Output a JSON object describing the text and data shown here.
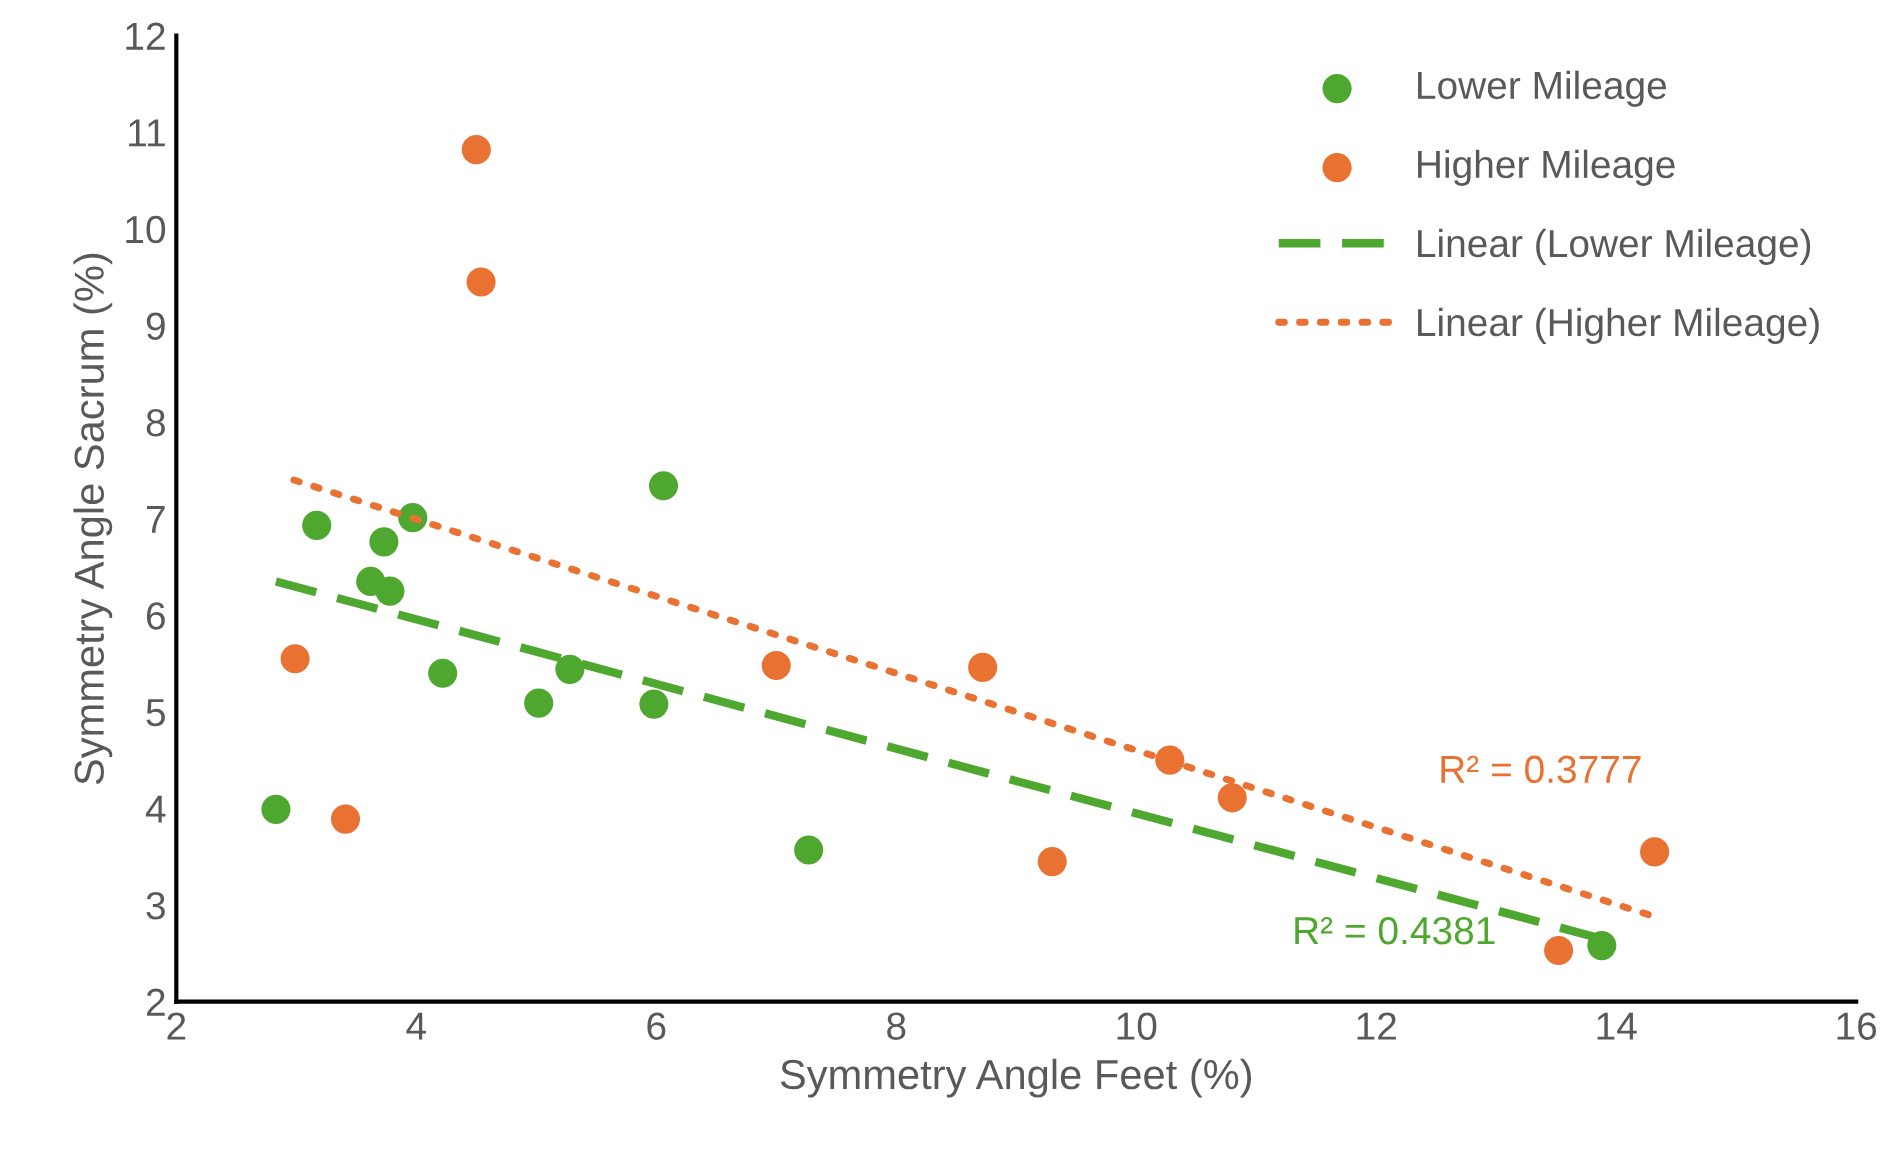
{
  "chart_data": {
    "type": "scatter",
    "xlabel": "Symmetry Angle Feet (%)",
    "ylabel": "Symmetry Angle Sacrum (%)",
    "xlim": [
      2,
      16
    ],
    "xticks": [
      2,
      4,
      6,
      8,
      10,
      12,
      14,
      16
    ],
    "ylim": [
      2,
      12
    ],
    "yticks": [
      2,
      3,
      4,
      5,
      6,
      7,
      8,
      9,
      10,
      11,
      12
    ],
    "grid": false,
    "legend": "top right",
    "marker": "circle",
    "series": [
      {
        "name": "Lower Mileage",
        "color": "#4ea72e",
        "x": [
          2.83,
          3.17,
          3.97,
          3.73,
          3.62,
          3.78,
          4.22,
          5.28,
          5.02,
          5.98,
          6.06,
          7.27,
          13.88
        ],
        "values": [
          3.99,
          6.93,
          7.01,
          6.76,
          6.35,
          6.25,
          5.4,
          5.44,
          5.09,
          5.08,
          7.34,
          3.57,
          2.58
        ]
      },
      {
        "name": "Higher Mileage",
        "color": "#e97132",
        "x": [
          4.5,
          4.54,
          2.99,
          3.41,
          7.0,
          8.72,
          10.28,
          10.8,
          9.3,
          13.52,
          14.32
        ],
        "values": [
          10.82,
          9.45,
          5.55,
          3.89,
          5.48,
          5.46,
          4.5,
          4.11,
          3.45,
          2.53,
          3.55
        ]
      },
      {
        "name": "Linear (Lower Mileage)",
        "type": "line",
        "line_style": "dashed",
        "marker": "none",
        "color": "#4ea72e",
        "x": [
          2.83,
          13.88
        ],
        "values": [
          6.35,
          2.65
        ]
      },
      {
        "name": "Linear (Higher Mileage)",
        "type": "line",
        "line_style": "dotted",
        "marker": "none",
        "color": "#e97132",
        "x": [
          2.98,
          14.32
        ],
        "values": [
          7.4,
          2.88
        ]
      }
    ],
    "annotations": [
      "R² = 0.3777",
      "R² = 0.4381"
    ]
  }
}
